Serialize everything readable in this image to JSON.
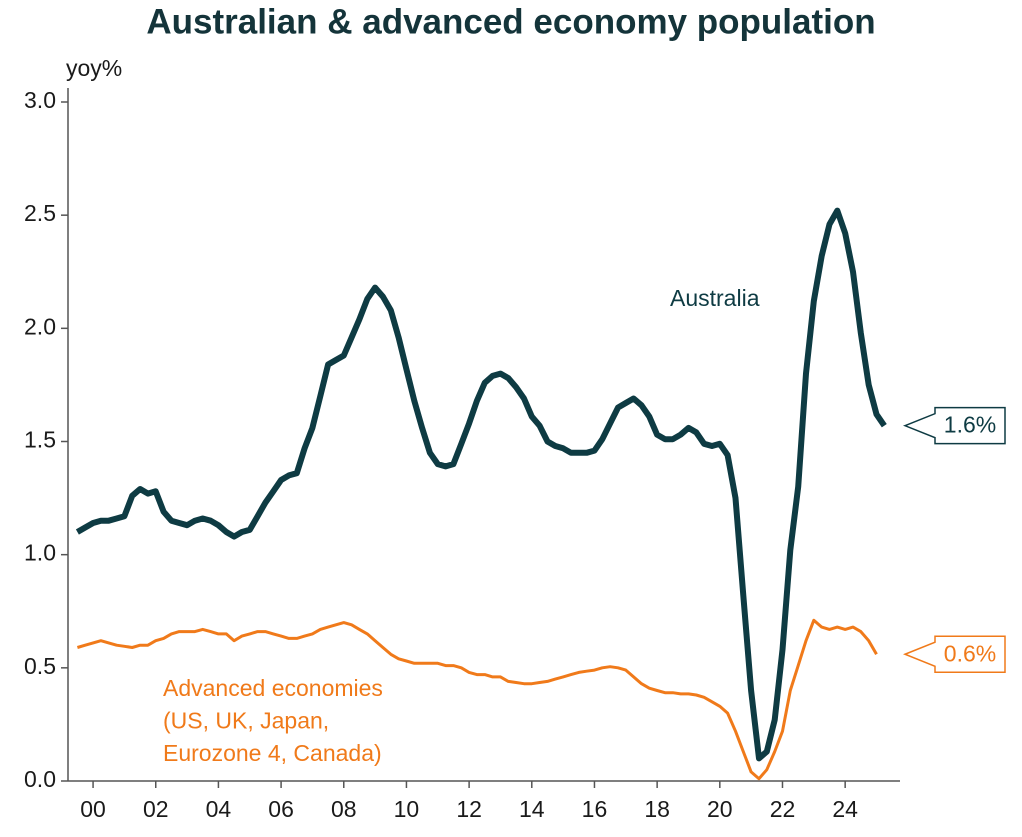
{
  "chart_data": {
    "type": "line",
    "title": "Australian & advanced economy population",
    "y_label": "yoy%",
    "x": [
      1999.5,
      1999.75,
      2000,
      2000.25,
      2000.5,
      2000.75,
      2001,
      2001.25,
      2001.5,
      2001.75,
      2002,
      2002.25,
      2002.5,
      2002.75,
      2003,
      2003.25,
      2003.5,
      2003.75,
      2004,
      2004.25,
      2004.5,
      2004.75,
      2005,
      2005.25,
      2005.5,
      2005.75,
      2006,
      2006.25,
      2006.5,
      2006.75,
      2007,
      2007.25,
      2007.5,
      2007.75,
      2008,
      2008.25,
      2008.5,
      2008.75,
      2009,
      2009.25,
      2009.5,
      2009.75,
      2010,
      2010.25,
      2010.5,
      2010.75,
      2011,
      2011.25,
      2011.5,
      2011.75,
      2012,
      2012.25,
      2012.5,
      2012.75,
      2013,
      2013.25,
      2013.5,
      2013.75,
      2014,
      2014.25,
      2014.5,
      2014.75,
      2015,
      2015.25,
      2015.5,
      2015.75,
      2016,
      2016.25,
      2016.5,
      2016.75,
      2017,
      2017.25,
      2017.5,
      2017.75,
      2018,
      2018.25,
      2018.5,
      2018.75,
      2019,
      2019.25,
      2019.5,
      2019.75,
      2020,
      2020.25,
      2020.5,
      2020.75,
      2021,
      2021.25,
      2021.5,
      2021.75,
      2022,
      2022.25,
      2022.5,
      2022.75,
      2023,
      2023.25,
      2023.5,
      2023.75,
      2024,
      2024.25,
      2024.5,
      2024.75,
      2025,
      2025.25
    ],
    "series": [
      {
        "name": "Australia",
        "color": "#0e3b43",
        "end_label": "1.6%",
        "values": [
          1.1,
          1.12,
          1.14,
          1.15,
          1.15,
          1.16,
          1.17,
          1.26,
          1.29,
          1.27,
          1.28,
          1.19,
          1.15,
          1.14,
          1.13,
          1.15,
          1.16,
          1.15,
          1.13,
          1.1,
          1.08,
          1.1,
          1.11,
          1.17,
          1.23,
          1.28,
          1.33,
          1.35,
          1.36,
          1.47,
          1.56,
          1.7,
          1.84,
          1.86,
          1.88,
          1.96,
          2.04,
          2.13,
          2.18,
          2.14,
          2.08,
          1.96,
          1.82,
          1.68,
          1.56,
          1.45,
          1.4,
          1.39,
          1.4,
          1.49,
          1.58,
          1.68,
          1.76,
          1.79,
          1.8,
          1.78,
          1.74,
          1.69,
          1.61,
          1.57,
          1.5,
          1.48,
          1.47,
          1.45,
          1.45,
          1.45,
          1.46,
          1.51,
          1.58,
          1.65,
          1.67,
          1.69,
          1.66,
          1.61,
          1.53,
          1.51,
          1.51,
          1.53,
          1.56,
          1.54,
          1.49,
          1.48,
          1.49,
          1.44,
          1.25,
          0.82,
          0.4,
          0.1,
          0.13,
          0.27,
          0.58,
          1.02,
          1.3,
          1.8,
          2.12,
          2.32,
          2.46,
          2.52,
          2.42,
          2.25,
          1.98,
          1.75,
          1.62,
          1.57
        ]
      },
      {
        "name": "Advanced economies\n(US, UK, Japan,\nEurozone 4, Canada)",
        "color": "#f07a1a",
        "end_label": "0.6%",
        "values": [
          0.59,
          0.6,
          0.61,
          0.62,
          0.61,
          0.6,
          0.595,
          0.59,
          0.6,
          0.6,
          0.62,
          0.63,
          0.65,
          0.66,
          0.66,
          0.66,
          0.67,
          0.66,
          0.65,
          0.65,
          0.62,
          0.64,
          0.65,
          0.66,
          0.66,
          0.65,
          0.64,
          0.63,
          0.63,
          0.64,
          0.65,
          0.67,
          0.68,
          0.69,
          0.7,
          0.69,
          0.67,
          0.65,
          0.62,
          0.59,
          0.56,
          0.54,
          0.53,
          0.52,
          0.52,
          0.52,
          0.52,
          0.51,
          0.51,
          0.5,
          0.48,
          0.47,
          0.47,
          0.46,
          0.46,
          0.44,
          0.435,
          0.43,
          0.43,
          0.435,
          0.44,
          0.45,
          0.46,
          0.47,
          0.48,
          0.485,
          0.49,
          0.5,
          0.505,
          0.5,
          0.49,
          0.46,
          0.43,
          0.41,
          0.4,
          0.39,
          0.39,
          0.385,
          0.385,
          0.38,
          0.37,
          0.35,
          0.33,
          0.3,
          0.22,
          0.13,
          0.04,
          0.01,
          0.05,
          0.13,
          0.22,
          0.4,
          0.51,
          0.62,
          0.71,
          0.68,
          0.67,
          0.68,
          0.67,
          0.68,
          0.66,
          0.62,
          0.56,
          null
        ]
      }
    ],
    "xlim": [
      1999.2,
      2025.75
    ],
    "xticks": [
      {
        "value": 2000,
        "label": "00"
      },
      {
        "value": 2002,
        "label": "02"
      },
      {
        "value": 2004,
        "label": "04"
      },
      {
        "value": 2006,
        "label": "06"
      },
      {
        "value": 2008,
        "label": "08"
      },
      {
        "value": 2010,
        "label": "10"
      },
      {
        "value": 2012,
        "label": "12"
      },
      {
        "value": 2014,
        "label": "14"
      },
      {
        "value": 2016,
        "label": "16"
      },
      {
        "value": 2018,
        "label": "18"
      },
      {
        "value": 2020,
        "label": "20"
      },
      {
        "value": 2022,
        "label": "22"
      },
      {
        "value": 2024,
        "label": "24"
      }
    ],
    "ylim": [
      0,
      3
    ],
    "yticks": [
      {
        "value": 0,
        "label": "0.0"
      },
      {
        "value": 0.5,
        "label": "0.5"
      },
      {
        "value": 1,
        "label": "1.0"
      },
      {
        "value": 1.5,
        "label": "1.5"
      },
      {
        "value": 2,
        "label": "2.0"
      },
      {
        "value": 2.5,
        "label": "2.5"
      },
      {
        "value": 3,
        "label": "3.0"
      }
    ],
    "grid": false
  }
}
